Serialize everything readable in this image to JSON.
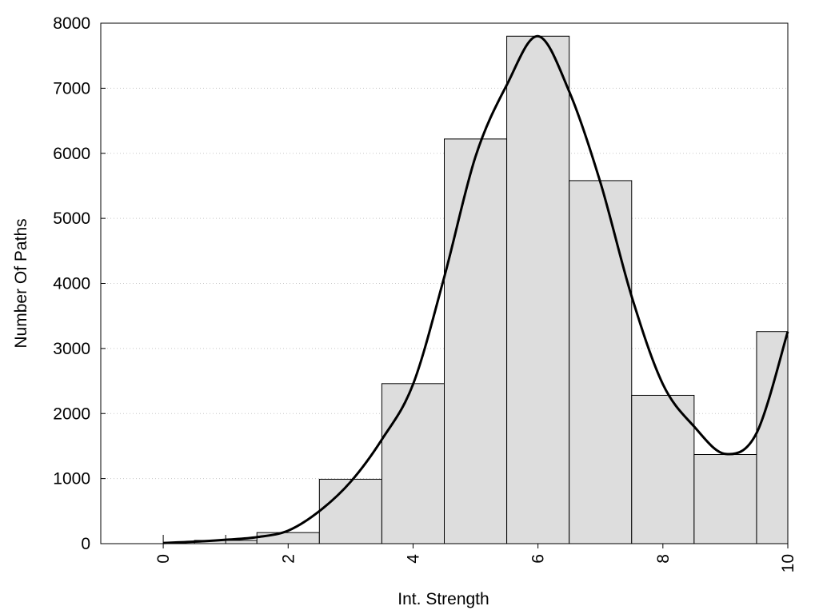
{
  "chart_data": {
    "type": "bar",
    "xlabel": "Int. Strength",
    "ylabel": "Number Of Paths",
    "xlim": [
      -1,
      10
    ],
    "ylim": [
      0,
      8000
    ],
    "x_ticks": [
      0,
      2,
      4,
      6,
      8,
      10
    ],
    "y_ticks": [
      0,
      1000,
      2000,
      3000,
      4000,
      5000,
      6000,
      7000,
      8000
    ],
    "grid": "horizontal dotted",
    "legend": "none",
    "bar_color": "#dddddd",
    "edge_color": "#000000",
    "line_color": "#000000",
    "bars": [
      {
        "x": 0,
        "width": 0,
        "value": 20
      },
      {
        "x": 1,
        "width": 1,
        "value": 50
      },
      {
        "x": 2,
        "width": 1,
        "value": 170
      },
      {
        "x": 3,
        "width": 1,
        "value": 990
      },
      {
        "x": 4,
        "width": 1,
        "value": 2460
      },
      {
        "x": 5,
        "width": 1,
        "value": 6220
      },
      {
        "x": 6,
        "width": 1,
        "value": 7800
      },
      {
        "x": 7,
        "width": 1,
        "value": 5580
      },
      {
        "x": 8,
        "width": 1,
        "value": 2280
      },
      {
        "x": 9,
        "width": 1,
        "value": 1370
      },
      {
        "x": 10,
        "width": 1,
        "value": 3260
      }
    ],
    "curve": {
      "x": [
        0,
        0.5,
        1,
        1.5,
        2,
        2.5,
        3,
        3.5,
        4,
        4.5,
        5,
        5.5,
        6,
        6.5,
        7,
        7.5,
        8,
        8.5,
        9,
        9.5,
        10
      ],
      "y": [
        10,
        30,
        60,
        100,
        200,
        500,
        950,
        1600,
        2450,
        4100,
        5950,
        7050,
        7800,
        6950,
        5550,
        3800,
        2450,
        1800,
        1380,
        1700,
        3260
      ]
    },
    "small_ticks_at_bottom": [
      0,
      1
    ]
  }
}
